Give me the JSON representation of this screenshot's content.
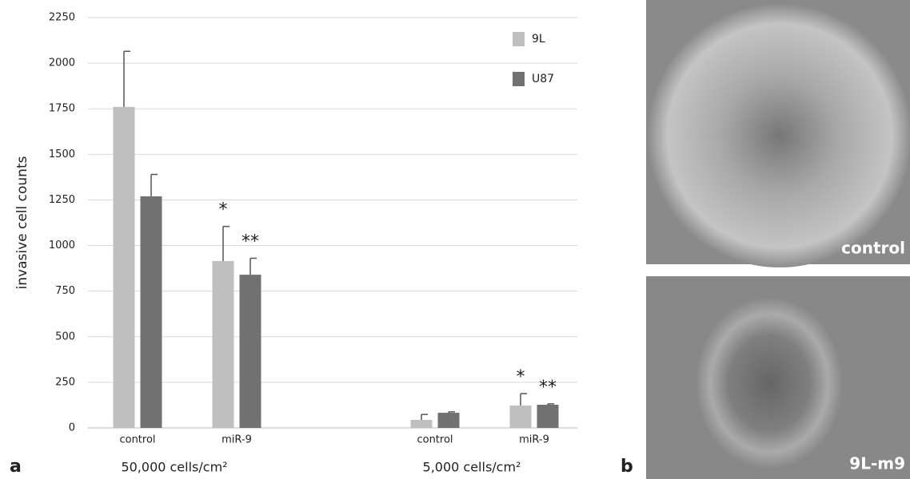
{
  "chart_data": {
    "type": "bar",
    "y_label": "invasive cell counts",
    "ylim": [
      0,
      2250
    ],
    "yticks": [
      0,
      250,
      500,
      750,
      1000,
      1250,
      1500,
      1750,
      2000,
      2250
    ],
    "grid": true,
    "groups": [
      {
        "label": "50,000 cells/cm²",
        "categories": [
          "control",
          "miR-9"
        ]
      },
      {
        "label": "5,000 cells/cm²",
        "categories": [
          "control",
          "miR-9"
        ]
      }
    ],
    "series": [
      {
        "name": "9L",
        "color": "#bfbfbf",
        "values": [
          1760,
          915,
          44,
          123
        ],
        "errors": [
          305,
          190,
          30,
          65
        ],
        "significance": [
          null,
          "*",
          null,
          "*"
        ]
      },
      {
        "name": "U87",
        "color": "#717171",
        "values": [
          1270,
          840,
          83,
          127
        ],
        "errors": [
          120,
          90,
          5,
          5
        ],
        "significance": [
          null,
          "**",
          null,
          "**"
        ]
      }
    ],
    "legend": "top-right",
    "panels": [
      "a",
      "b"
    ],
    "images": [
      {
        "label": "control"
      },
      {
        "label": "9L-m9"
      }
    ]
  }
}
